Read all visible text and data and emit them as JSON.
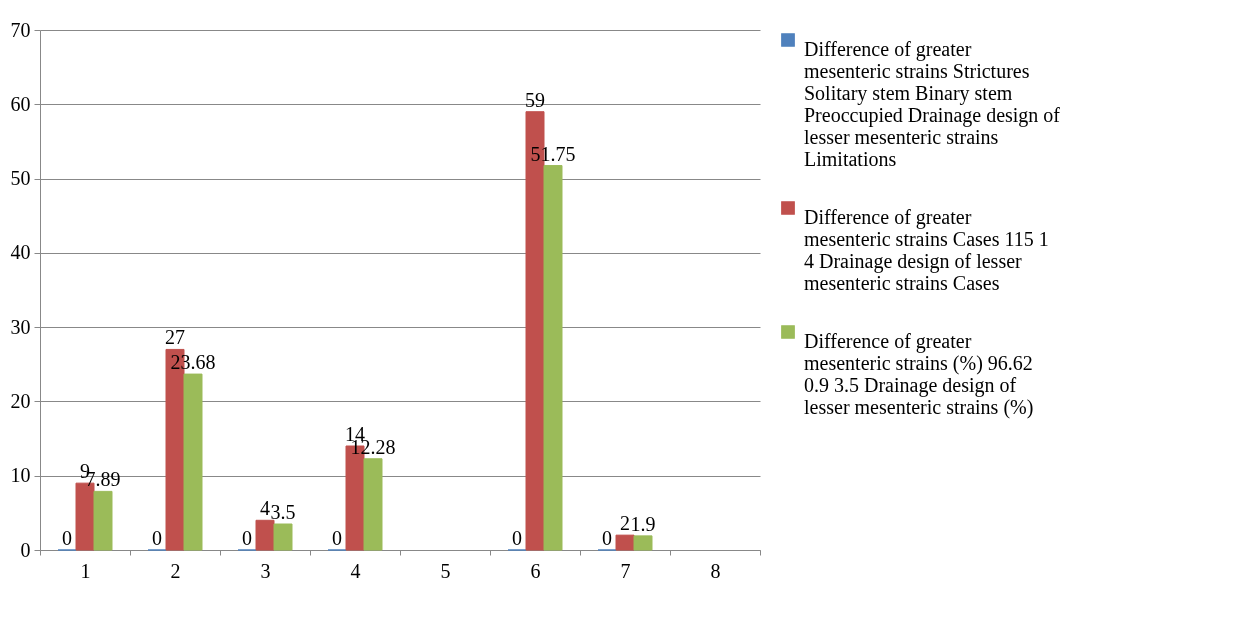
{
  "chart_data": {
    "type": "bar",
    "categories": [
      "1",
      "2",
      "3",
      "4",
      "5",
      "6",
      "7",
      "8"
    ],
    "series": [
      {
        "name": "Difference of greater mesenteric strains Strictures Solitary stem Binary stem Preoccupied Drainage design of lesser mesenteric strains Limitations",
        "color": "#4f81bd",
        "values": [
          0,
          0,
          0,
          0,
          null,
          0,
          0,
          null
        ]
      },
      {
        "name": "Difference of greater mesenteric strains Cases 115 1 4 Drainage design of lesser mesenteric strains Cases",
        "color": "#c0504d",
        "values": [
          9,
          27,
          4,
          14,
          null,
          59,
          2,
          null
        ]
      },
      {
        "name": "Difference of greater mesenteric strains (%) 96.62 0.9 3.5 Drainage design of lesser mesenteric strains (%)",
        "color": "#9bbb59",
        "values": [
          7.89,
          23.68,
          3.5,
          12.28,
          null,
          51.75,
          1.9,
          null
        ]
      }
    ],
    "ylim": [
      0,
      70
    ],
    "yticks": [
      0,
      10,
      20,
      30,
      40,
      50,
      60,
      70
    ],
    "grid": "y",
    "legend": "right",
    "data_labels": true
  }
}
